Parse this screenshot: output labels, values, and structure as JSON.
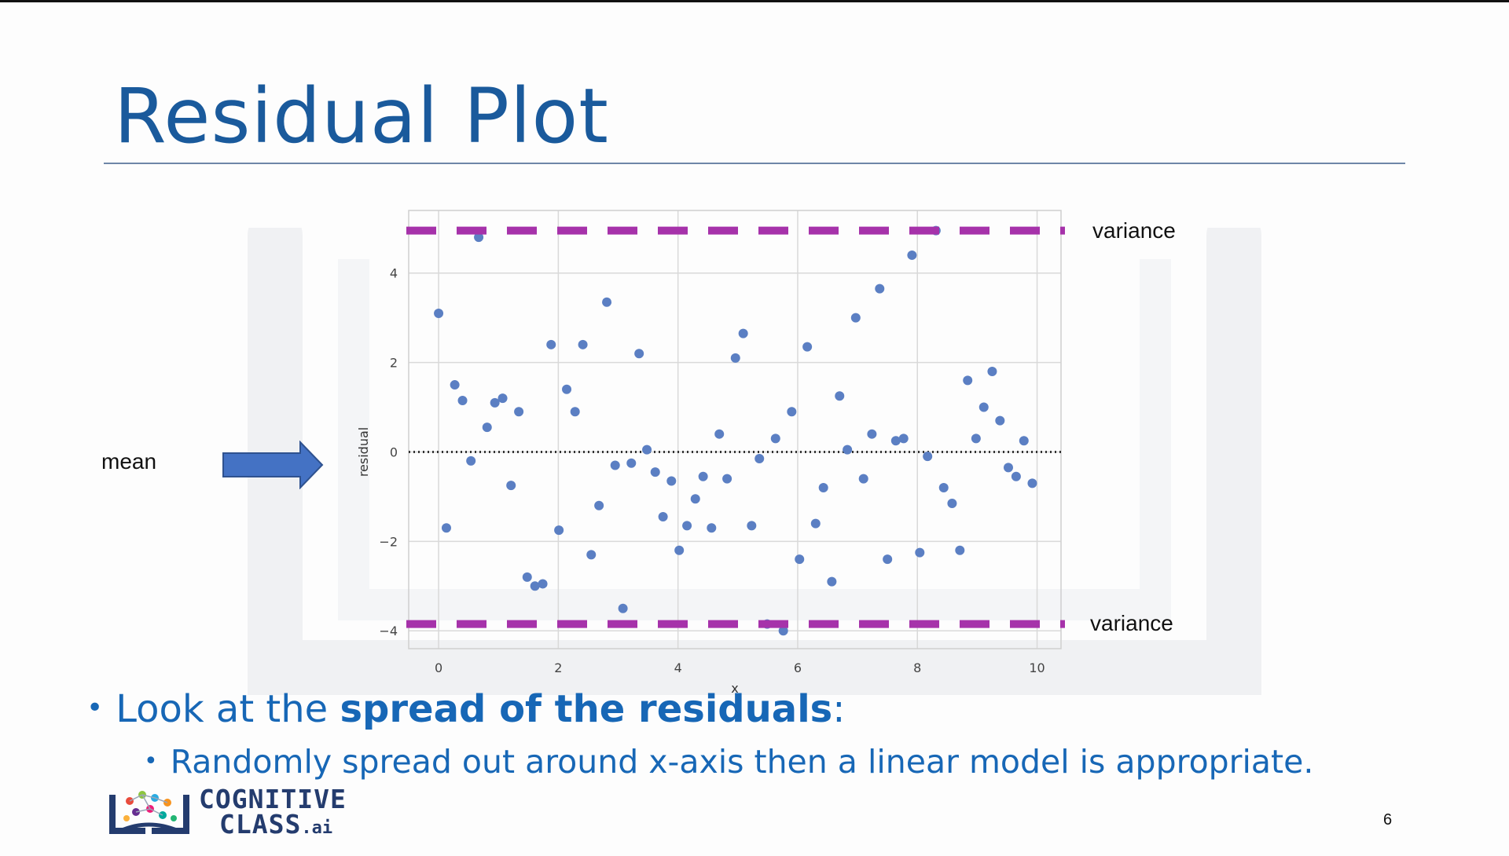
{
  "slide": {
    "title": "Residual Plot",
    "page_number": "6",
    "mean_label": "mean",
    "variance_label_top": "variance",
    "variance_label_bottom": "variance",
    "bullet_main_prefix": "Look at the ",
    "bullet_main_bold": "spread of the residuals",
    "bullet_main_suffix": ":",
    "bullet_sub": "Randomly spread out around x-axis then a linear model is appropriate.",
    "bullet_glyph": "•",
    "logo_line1": "COGNITIVE",
    "logo_line2": "CLASS",
    "logo_suffix": ".ai"
  },
  "colors": {
    "title": "#1a5a9c",
    "bullet_text": "#1767b6",
    "points": "#5b7fc3",
    "variance_lines": "#a632aa",
    "arrow_fill": "#4472c4",
    "arrow_stroke": "#2f528f",
    "grid": "#d9d9d9"
  },
  "chart_data": {
    "type": "scatter",
    "title": "",
    "xlabel": "x",
    "ylabel": "residual",
    "xlim": [
      -0.5,
      10.4
    ],
    "ylim": [
      -4.4,
      5.4
    ],
    "xticks": [
      0,
      2,
      4,
      6,
      8,
      10
    ],
    "yticks": [
      -4,
      -2,
      0,
      2,
      4
    ],
    "xtick_labels": [
      "0",
      "2",
      "4",
      "6",
      "8",
      "10"
    ],
    "ytick_labels": [
      "−4",
      "−2",
      "0",
      "2",
      "4"
    ],
    "grid": true,
    "reference_lines": [
      {
        "name": "mean",
        "y": 0,
        "style": "dotted"
      },
      {
        "name": "variance-upper",
        "y": 4.95,
        "style": "dashed"
      },
      {
        "name": "variance-lower",
        "y": -3.85,
        "style": "dashed"
      }
    ],
    "series": [
      {
        "name": "residuals",
        "points": [
          [
            0.0,
            3.1
          ],
          [
            0.13,
            -1.7
          ],
          [
            0.27,
            1.5
          ],
          [
            0.4,
            1.15
          ],
          [
            0.54,
            -0.2
          ],
          [
            0.67,
            4.8
          ],
          [
            0.81,
            0.55
          ],
          [
            0.94,
            1.1
          ],
          [
            1.07,
            1.2
          ],
          [
            1.21,
            -0.75
          ],
          [
            1.34,
            0.9
          ],
          [
            1.48,
            -2.8
          ],
          [
            1.61,
            -3.0
          ],
          [
            1.74,
            -2.95
          ],
          [
            1.88,
            2.4
          ],
          [
            2.01,
            -1.75
          ],
          [
            2.14,
            1.4
          ],
          [
            2.28,
            0.9
          ],
          [
            2.41,
            2.4
          ],
          [
            2.55,
            -2.3
          ],
          [
            2.68,
            -1.2
          ],
          [
            2.81,
            3.35
          ],
          [
            2.95,
            -0.3
          ],
          [
            3.08,
            -3.5
          ],
          [
            3.22,
            -0.25
          ],
          [
            3.35,
            2.2
          ],
          [
            3.48,
            0.05
          ],
          [
            3.62,
            -0.45
          ],
          [
            3.75,
            -1.45
          ],
          [
            3.89,
            -0.65
          ],
          [
            4.02,
            -2.2
          ],
          [
            4.15,
            -1.65
          ],
          [
            4.29,
            -1.05
          ],
          [
            4.42,
            -0.55
          ],
          [
            4.56,
            -1.7
          ],
          [
            4.69,
            0.4
          ],
          [
            4.82,
            -0.6
          ],
          [
            4.96,
            2.1
          ],
          [
            5.09,
            2.65
          ],
          [
            5.23,
            -1.65
          ],
          [
            5.36,
            -0.15
          ],
          [
            5.49,
            -3.85
          ],
          [
            5.63,
            0.3
          ],
          [
            5.76,
            -4.0
          ],
          [
            5.9,
            0.9
          ],
          [
            6.03,
            -2.4
          ],
          [
            6.16,
            2.35
          ],
          [
            6.3,
            -1.6
          ],
          [
            6.43,
            -0.8
          ],
          [
            6.57,
            -2.9
          ],
          [
            6.7,
            1.25
          ],
          [
            6.83,
            0.05
          ],
          [
            6.97,
            3.0
          ],
          [
            7.1,
            -0.6
          ],
          [
            7.24,
            0.4
          ],
          [
            7.37,
            3.65
          ],
          [
            7.5,
            -2.4
          ],
          [
            7.64,
            0.25
          ],
          [
            7.77,
            0.3
          ],
          [
            7.91,
            4.4
          ],
          [
            8.04,
            -2.25
          ],
          [
            8.17,
            -0.1
          ],
          [
            8.31,
            4.95
          ],
          [
            8.44,
            -0.8
          ],
          [
            8.58,
            -1.15
          ],
          [
            8.71,
            -2.2
          ],
          [
            8.84,
            1.6
          ],
          [
            8.98,
            0.3
          ],
          [
            9.11,
            1.0
          ],
          [
            9.25,
            1.8
          ],
          [
            9.38,
            0.7
          ],
          [
            9.52,
            -0.35
          ],
          [
            9.65,
            -0.55
          ],
          [
            9.78,
            0.25
          ],
          [
            9.92,
            -0.7
          ]
        ]
      }
    ]
  }
}
